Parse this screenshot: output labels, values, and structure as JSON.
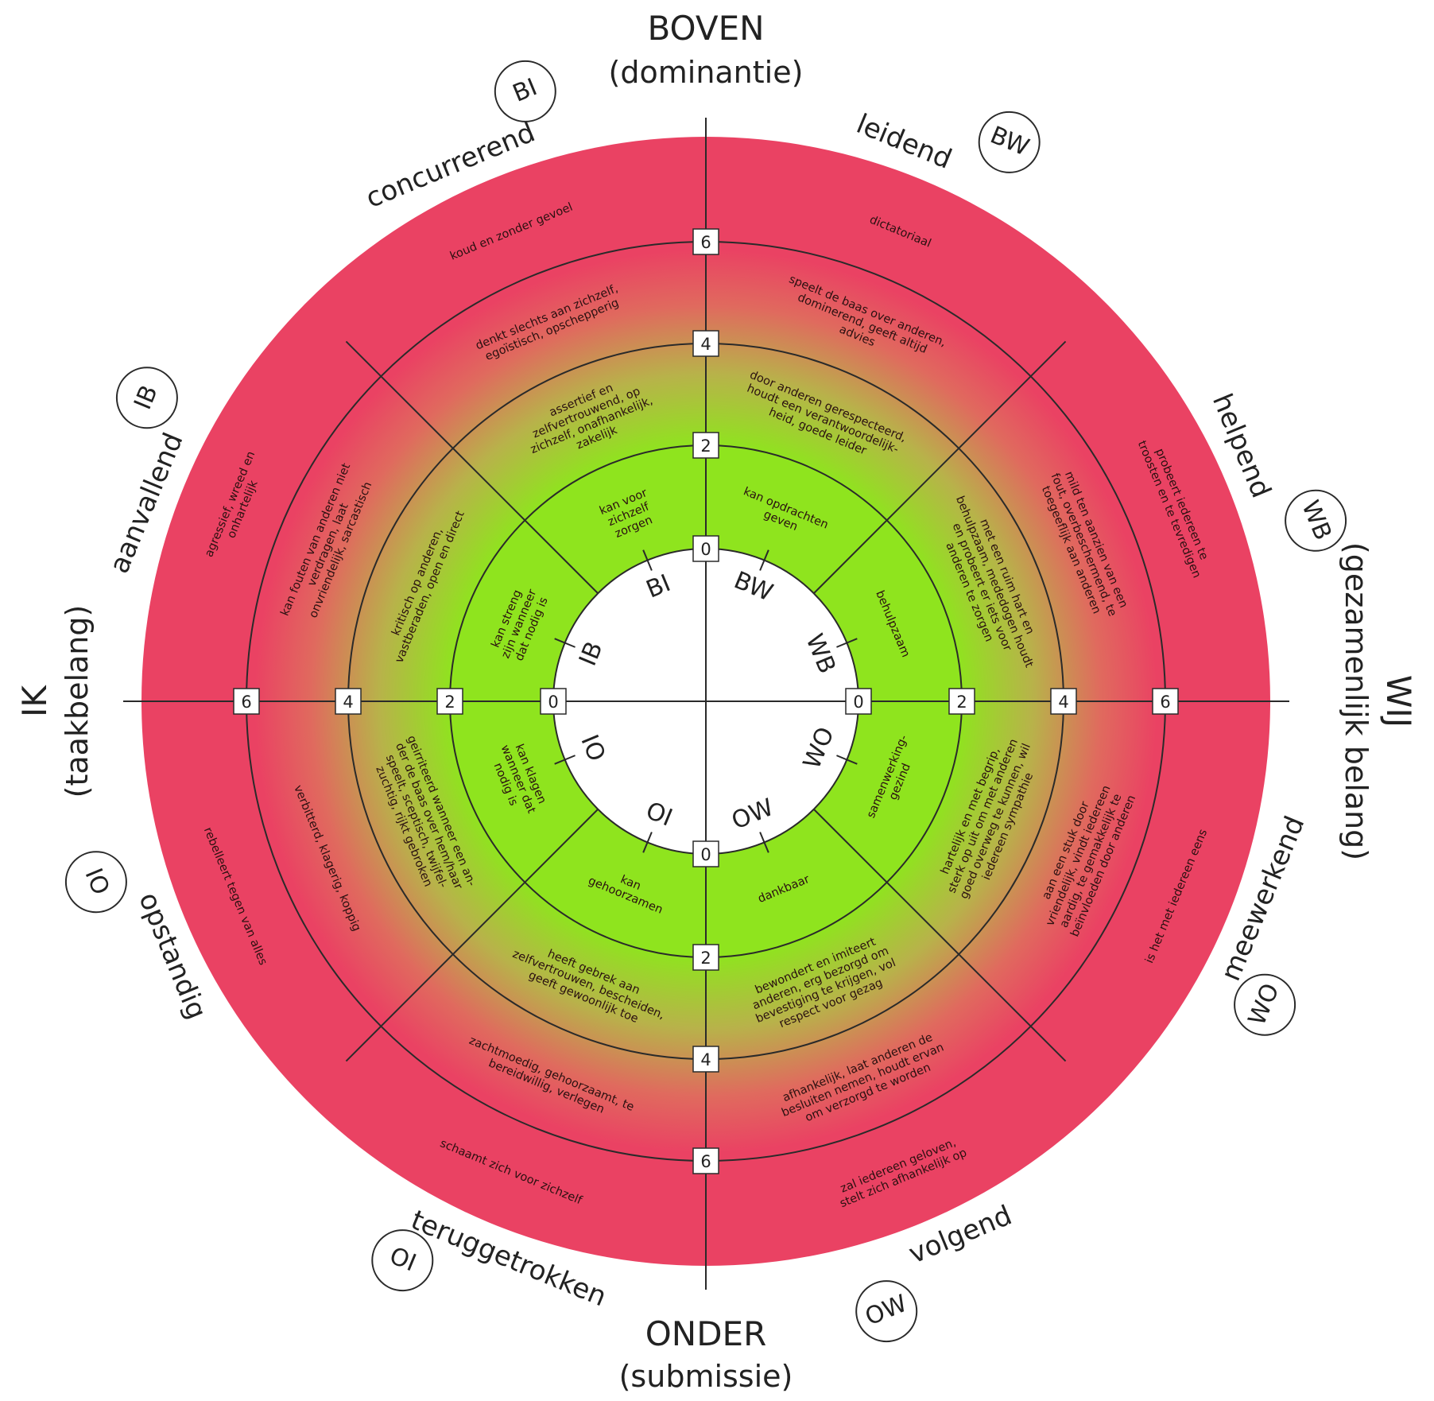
{
  "axes": {
    "top": {
      "main": "BOVEN",
      "sub": "(dominantie)"
    },
    "bottom": {
      "main": "ONDER",
      "sub": "(submissie)"
    },
    "left": {
      "main": "IK",
      "sub": "(taakbelang)"
    },
    "right": {
      "main": "WIJ",
      "sub": "(gezamenlijk belang)"
    }
  },
  "scale_labels": [
    "0",
    "2",
    "4",
    "6"
  ],
  "colors": {
    "healthy": "#8fe41e",
    "unhealthy": "#ea4263",
    "lines": "#2a2a2a"
  },
  "octants": [
    {
      "code": "BW",
      "title": "leidend",
      "levels": {
        "l1": "kan opdrachten geven",
        "l2": "door anderen gerespecteerd, houdt een verantwoordelijk- heid, goede leider",
        "l3": "speelt de baas over anderen, dominerend, geeft altijd advies",
        "l4": "dictatoriaal"
      }
    },
    {
      "code": "WB",
      "title": "helpend",
      "levels": {
        "l1": "behulpzaam",
        "l2": "met een ruim hart en behulpzaam, mededogen houdt en probeert er iets voor anderen te zorgen",
        "l3": "mild ten aanzien van een fout, overbeschermend, te toegeeflijk aan anderen",
        "l4": "probeert iedereen te troosten en te tevredigen"
      }
    },
    {
      "code": "WO",
      "title": "meewerkend",
      "levels": {
        "l1": "samenwerking- gezind",
        "l2": "hartelijk en met begrip, sterk op uit om met anderen goed overweg te kunnen, wil iedereen sympathie",
        "l3": "aan een stuk door vriendelijk, vindt iedereen aardig, te gemakkelijk te beïnvloeden door anderen",
        "l4": "is het met iedereen eens"
      }
    },
    {
      "code": "OW",
      "title": "volgend",
      "levels": {
        "l1": "dankbaar",
        "l2": "bewondert en imiteert anderen, erg bezorgd om bevestiging te krijgen, vol respect voor gezag",
        "l3": "afhankelijk, laat anderen de besluiten nemen, houdt ervan om verzorgd te worden",
        "l4": "zal iedereen geloven, stelt zich afhankelijk op"
      }
    },
    {
      "code": "OI",
      "title": "teruggetrokken",
      "levels": {
        "l1": "kan gehoorzamen",
        "l2": "heeft gebrek aan zelfvertrouwen, bescheiden, geeft gewoonlijk toe",
        "l3": "zachtmoedig, gehoorzaamt, te bereidwillig, verlegen",
        "l4": "schaamt zich voor zichzelf"
      }
    },
    {
      "code": "IO",
      "title": "opstandig",
      "levels": {
        "l1": "kan klagen wanneer dat nodig is",
        "l2": "geirriteerd wanneer een an- der de baas over hem/haar speelt, sceptisch, twijfel- zuchtig, rijkt gebroken",
        "l3": "verbitterd, klagerig, koppig",
        "l4": "rebelleert tegen van alles"
      }
    },
    {
      "code": "IB",
      "title": "aanvallend",
      "levels": {
        "l1": "kan streng zijn wanneer dat nodig is",
        "l2": "kritisch op anderen, vastberaden, open en direct",
        "l3": "kan fouten van anderen niet verdragen, laat onvriendelijk, sarcastisch",
        "l4": "agressief, wreed en onhartelijk"
      }
    },
    {
      "code": "BI",
      "title": "concurrerend",
      "levels": {
        "l1": "kan voor zichzelf zorgen",
        "l2": "assertief en zelfvertrouwend, op zichzelf, onafhankelijk, zakelijk",
        "l3": "denkt slechts aan zichzelf, egoïstisch, opschepperig",
        "l4": "koud en zonder gevoel"
      }
    }
  ]
}
